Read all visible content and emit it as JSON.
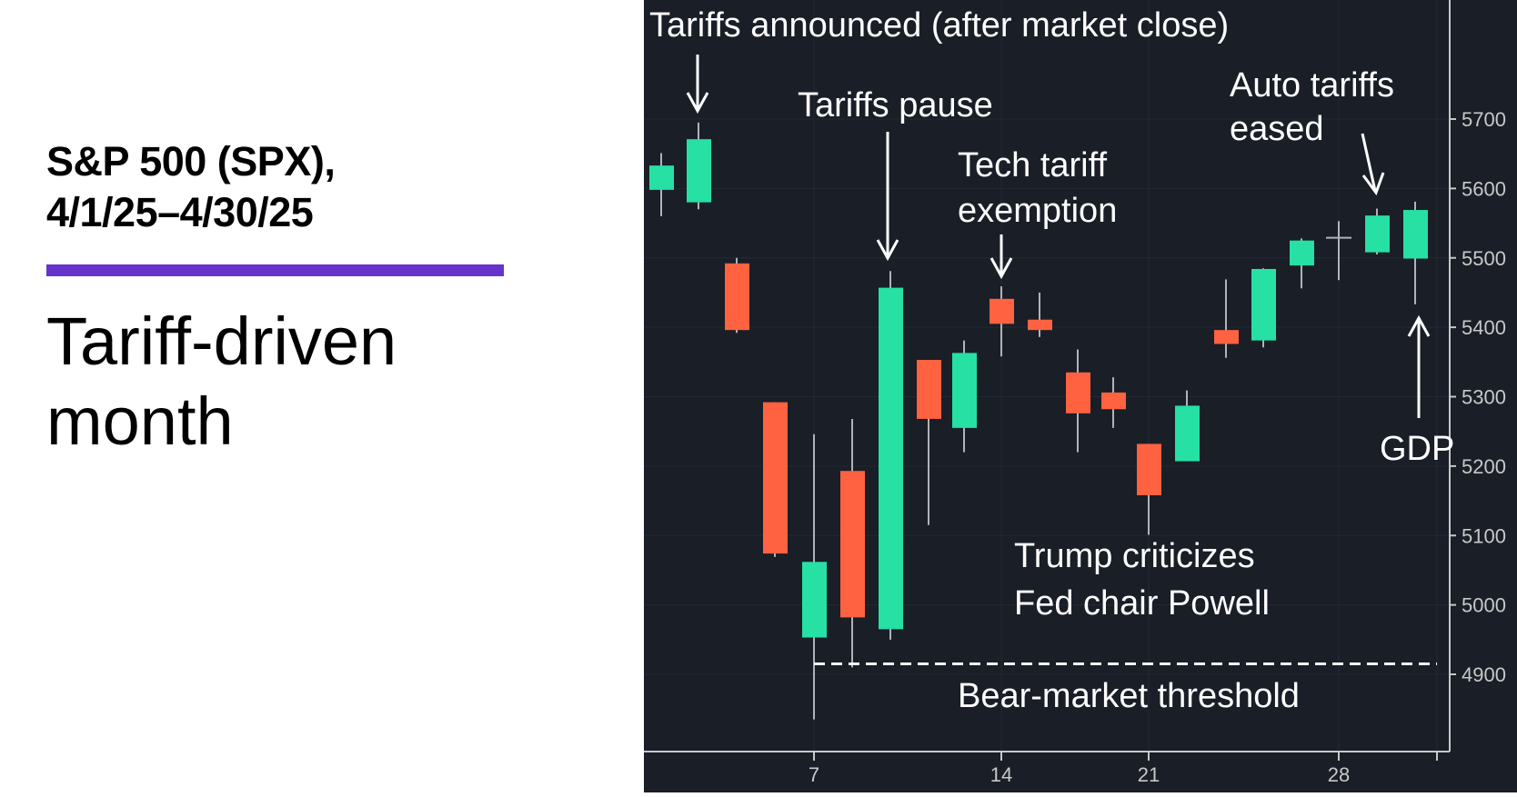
{
  "header": {
    "title_line1": "S&P 500 (SPX),",
    "title_line2": "4/1/25–4/30/25",
    "subtitle_line1": "Tariff-driven",
    "subtitle_line2": "month",
    "accent_color": "#6633cc"
  },
  "colors": {
    "background": "#191e27",
    "up": "#26e0a4",
    "down": "#ff6240",
    "wick": "#b0b3b8",
    "grid": "#232a35",
    "axis": "#c8c8c8",
    "annotation": "#ffffff"
  },
  "annotations": {
    "tariffs_announced": "Tariffs announced (after market close)",
    "tariffs_pause": "Tariffs pause",
    "tech_exemption_line1": "Tech tariff",
    "tech_exemption_line2": "exemption",
    "auto_tariffs_line1": "Auto tariffs",
    "auto_tariffs_line2": "eased",
    "gdp": "GDP",
    "powell_line1": "Trump criticizes",
    "powell_line2": "Fed chair Powell",
    "bear_market": "Bear-market threshold"
  },
  "chart_data": {
    "type": "candlestick",
    "title": "S&P 500 (SPX), 4/1/25–4/30/25",
    "subtitle": "Tariff-driven month",
    "xlabel": "",
    "ylabel": "",
    "x_ticks": [
      "7",
      "14",
      "21",
      "28"
    ],
    "y_ticks": [
      4900,
      5000,
      5100,
      5200,
      5300,
      5400,
      5500,
      5600,
      5700
    ],
    "ylim": [
      4830,
      5780
    ],
    "grid": true,
    "bear_market_threshold": 4915,
    "candles": [
      {
        "date": "4/1",
        "open": 5598,
        "high": 5651,
        "low": 5560,
        "close": 5633
      },
      {
        "date": "4/2",
        "open": 5580,
        "high": 5695,
        "low": 5570,
        "close": 5671
      },
      {
        "date": "4/3",
        "open": 5492,
        "high": 5500,
        "low": 5392,
        "close": 5396
      },
      {
        "date": "4/4",
        "open": 5292,
        "high": 5292,
        "low": 5069,
        "close": 5074
      },
      {
        "date": "4/7",
        "open": 4953,
        "high": 5246,
        "low": 4835,
        "close": 5062
      },
      {
        "date": "4/8",
        "open": 5193,
        "high": 5268,
        "low": 4910,
        "close": 4982
      },
      {
        "date": "4/9",
        "open": 4965,
        "high": 5481,
        "low": 4950,
        "close": 5457
      },
      {
        "date": "4/10",
        "open": 5353,
        "high": 5353,
        "low": 5115,
        "close": 5268
      },
      {
        "date": "4/11",
        "open": 5255,
        "high": 5381,
        "low": 5220,
        "close": 5363
      },
      {
        "date": "4/14",
        "open": 5441,
        "high": 5459,
        "low": 5358,
        "close": 5405
      },
      {
        "date": "4/15",
        "open": 5411,
        "high": 5450,
        "low": 5386,
        "close": 5396
      },
      {
        "date": "4/16",
        "open": 5335,
        "high": 5368,
        "low": 5220,
        "close": 5276
      },
      {
        "date": "4/17",
        "open": 5306,
        "high": 5328,
        "low": 5255,
        "close": 5282
      },
      {
        "date": "4/21",
        "open": 5232,
        "high": 5232,
        "low": 5101,
        "close": 5158
      },
      {
        "date": "4/22",
        "open": 5207,
        "high": 5309,
        "low": 5207,
        "close": 5287
      },
      {
        "date": "4/23",
        "open": 5396,
        "high": 5469,
        "low": 5356,
        "close": 5376
      },
      {
        "date": "4/24",
        "open": 5381,
        "high": 5485,
        "low": 5371,
        "close": 5484
      },
      {
        "date": "4/25",
        "open": 5489,
        "high": 5528,
        "low": 5456,
        "close": 5525
      },
      {
        "date": "4/28",
        "open": 5529,
        "high": 5553,
        "low": 5468,
        "close": 5529
      },
      {
        "date": "4/29",
        "open": 5508,
        "high": 5571,
        "low": 5505,
        "close": 5561
      },
      {
        "date": "4/30",
        "open": 5499,
        "high": 5581,
        "low": 5433,
        "close": 5569
      }
    ]
  }
}
